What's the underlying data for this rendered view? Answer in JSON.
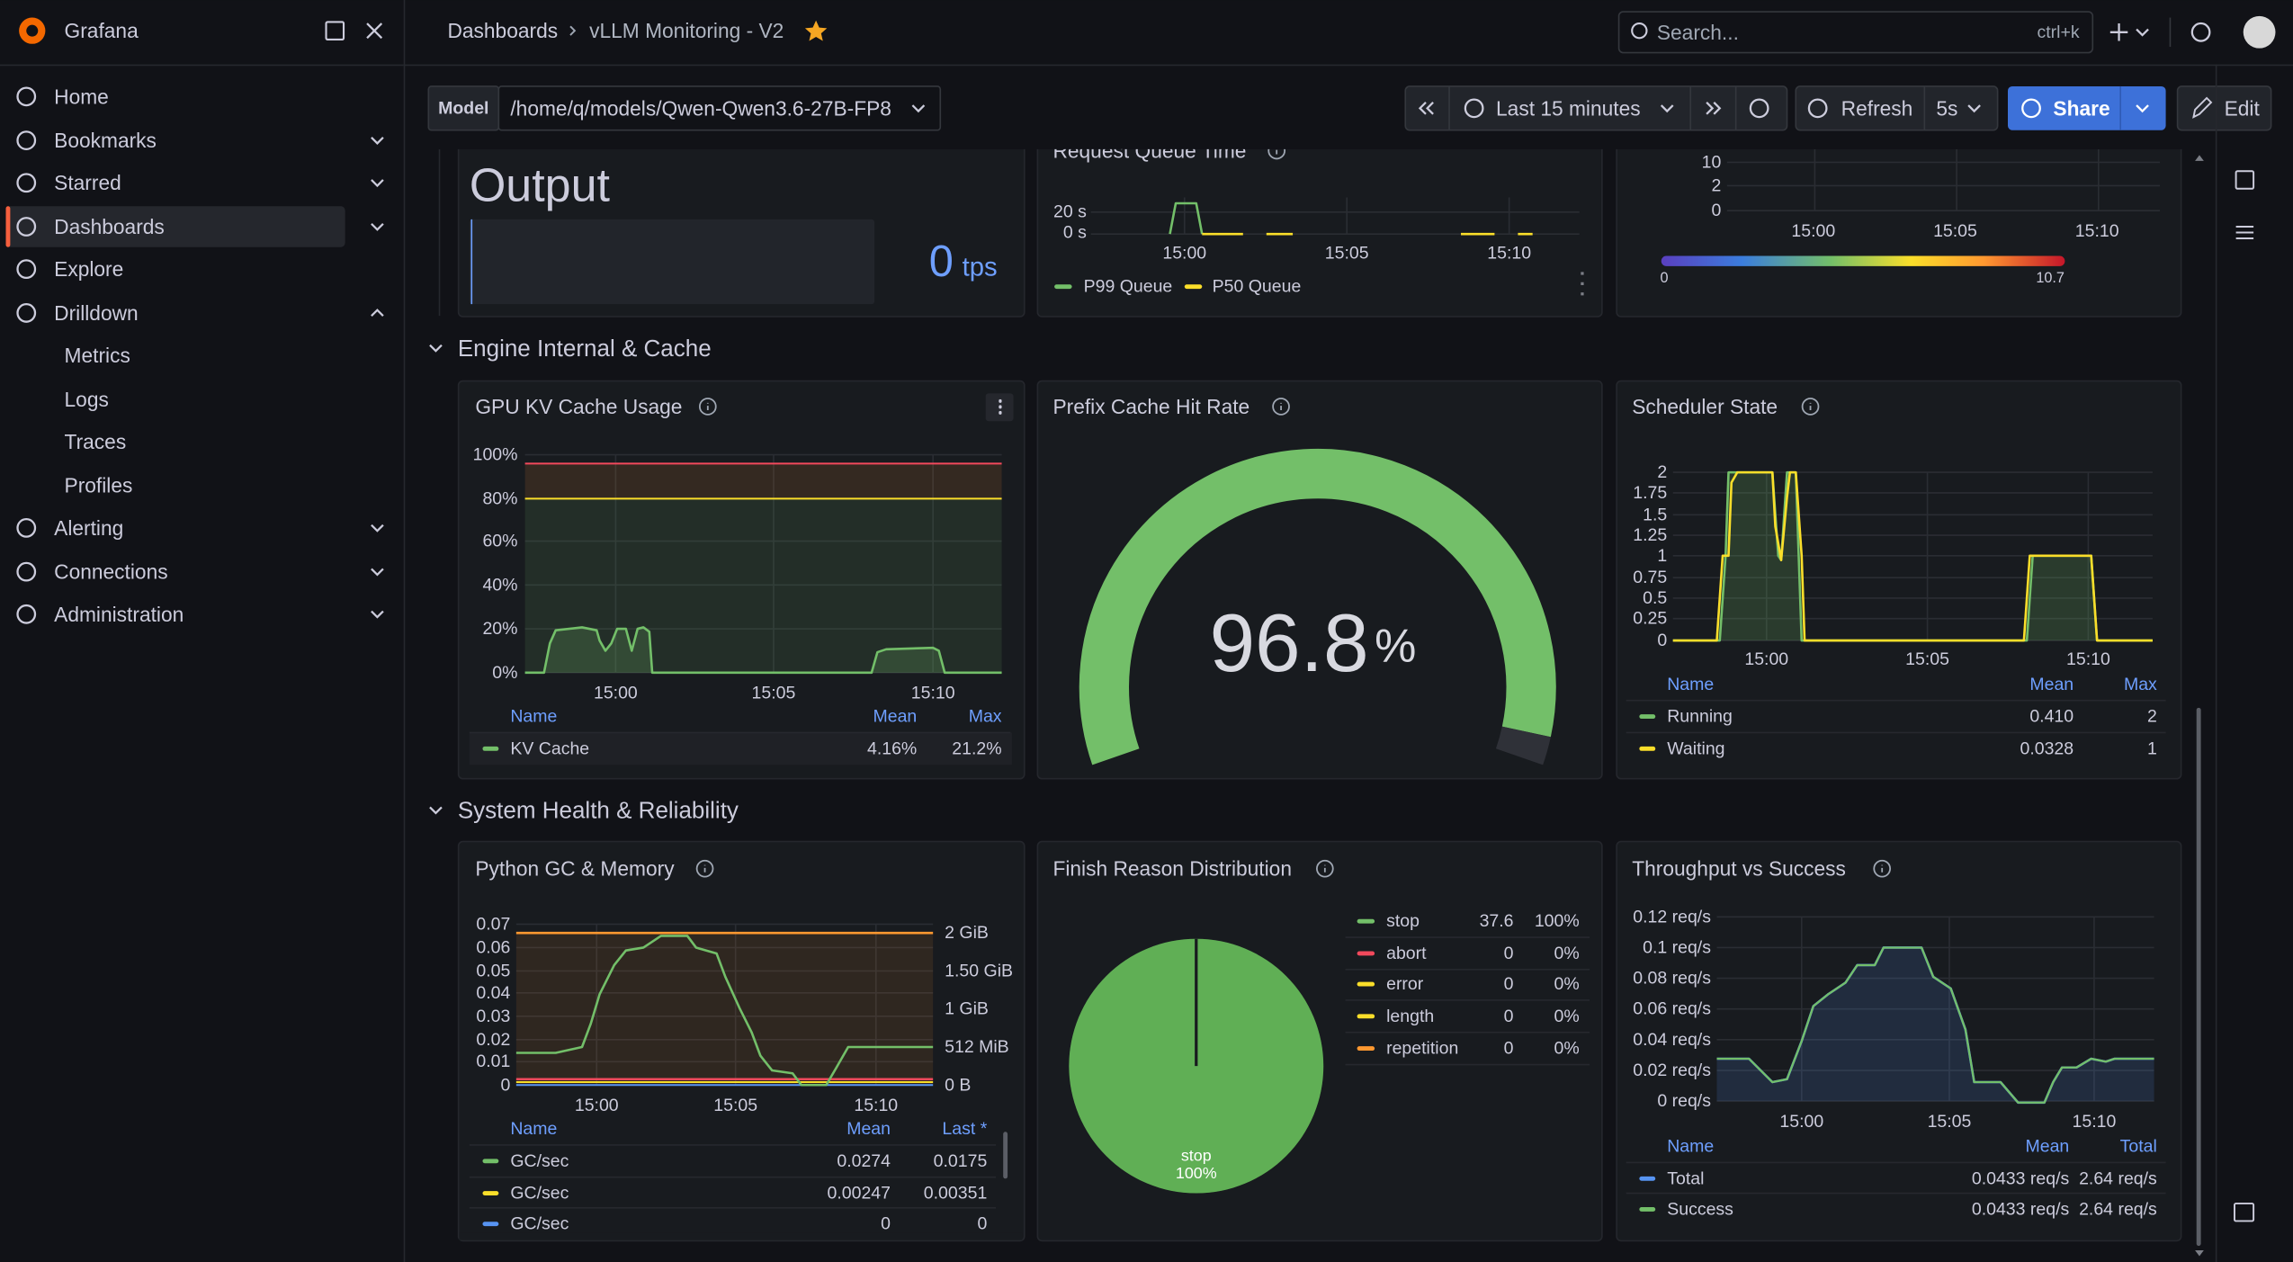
{
  "header": {
    "app_name": "Grafana",
    "breadcrumbs": [
      "Dashboards",
      "vLLM Monitoring - V2"
    ],
    "search_placeholder": "Search...",
    "search_shortcut": "ctrl+k"
  },
  "nav": {
    "items": [
      "Home",
      "Bookmarks",
      "Starred",
      "Dashboards",
      "Explore",
      "Drilldown"
    ],
    "drilldown": [
      "Metrics",
      "Logs",
      "Traces",
      "Profiles"
    ],
    "items_after": [
      "Alerting",
      "Connections",
      "Administration"
    ]
  },
  "toolbar": {
    "variable_label": "Model",
    "variable_value": "/home/q/models/Qwen-Qwen3.6-27B-FP8",
    "time_range": "Last 15 minutes",
    "refresh": "Refresh",
    "refresh_interval": "5s",
    "share": "Share",
    "edit": "Edit"
  },
  "rows": [
    "Engine Internal & Cache",
    "System Health & Reliability"
  ],
  "panels": {
    "output": {
      "title": "Output",
      "value": 0,
      "unit": "tps"
    },
    "queue_time": {
      "title": "Request Queue Time",
      "y_ticks": [
        "20 s",
        "0 s"
      ],
      "x_ticks": [
        "15:00",
        "15:05",
        "15:10"
      ],
      "legend": [
        "P99 Queue",
        "P50 Queue"
      ]
    },
    "heatmap": {
      "y_ticks": [
        "10",
        "2",
        "0"
      ],
      "x_ticks": [
        "15:00",
        "15:05",
        "15:10"
      ],
      "scale": [
        "0",
        "10.7"
      ]
    },
    "kv_cache": {
      "title": "GPU KV Cache Usage",
      "y_ticks": [
        "100%",
        "80%",
        "60%",
        "40%",
        "20%",
        "0%"
      ],
      "x_ticks": [
        "15:00",
        "15:05",
        "15:10"
      ],
      "legend_headers": [
        "Name",
        "Mean",
        "Max"
      ],
      "legend_rows": [
        [
          "KV Cache",
          "4.16%",
          "21.2%"
        ]
      ]
    },
    "prefix_cache": {
      "title": "Prefix Cache Hit Rate",
      "value": 96.8,
      "unit": "%"
    },
    "scheduler": {
      "title": "Scheduler State",
      "y_ticks": [
        "2",
        "1.75",
        "1.5",
        "1.25",
        "1",
        "0.75",
        "0.5",
        "0.25",
        "0"
      ],
      "x_ticks": [
        "15:00",
        "15:05",
        "15:10"
      ],
      "legend_headers": [
        "Name",
        "Mean",
        "Max"
      ],
      "legend_rows": [
        [
          "Running",
          "0.410",
          "2"
        ],
        [
          "Waiting",
          "0.0328",
          "1"
        ]
      ]
    },
    "python_gc": {
      "title": "Python GC & Memory",
      "y_ticks": [
        "0.07",
        "0.06",
        "0.05",
        "0.04",
        "0.03",
        "0.02",
        "0.01",
        "0"
      ],
      "y2_ticks": [
        "2 GiB",
        "1.50 GiB",
        "1 GiB",
        "512 MiB",
        "0 B"
      ],
      "x_ticks": [
        "15:00",
        "15:05",
        "15:10"
      ],
      "legend_headers": [
        "Name",
        "Mean",
        "Last *"
      ],
      "legend_rows": [
        [
          "GC/sec",
          "0.0274",
          "0.0175"
        ],
        [
          "GC/sec",
          "0.00247",
          "0.00351"
        ],
        [
          "GC/sec",
          "0",
          "0"
        ]
      ]
    },
    "finish_reason": {
      "title": "Finish Reason Distribution",
      "legend_rows": [
        [
          "stop",
          "37.6",
          "100%"
        ],
        [
          "abort",
          "0",
          "0%"
        ],
        [
          "error",
          "0",
          "0%"
        ],
        [
          "length",
          "0",
          "0%"
        ],
        [
          "repetition",
          "0",
          "0%"
        ]
      ],
      "slice_label": "stop",
      "slice_percent": "100%"
    },
    "throughput": {
      "title": "Throughput vs Success",
      "y_ticks": [
        "0.12 req/s",
        "0.1 req/s",
        "0.08 req/s",
        "0.06 req/s",
        "0.04 req/s",
        "0.02 req/s",
        "0 req/s"
      ],
      "x_ticks": [
        "15:00",
        "15:05",
        "15:10"
      ],
      "legend_headers": [
        "Name",
        "Mean",
        "Total"
      ],
      "legend_rows": [
        [
          "Total",
          "0.0433 req/s",
          "2.64 req/s"
        ],
        [
          "Success",
          "0.0433 req/s",
          "2.64 req/s"
        ]
      ]
    }
  }
}
